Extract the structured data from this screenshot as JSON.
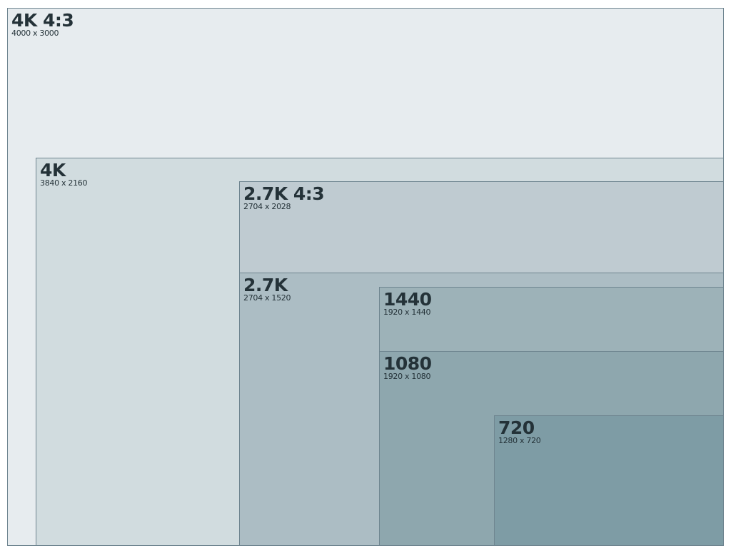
{
  "resolutions": [
    {
      "name": "4K 4:3",
      "dims": "4000 x 3000",
      "width": 4000,
      "height": 3000,
      "color": "#e7ecef"
    },
    {
      "name": "4K",
      "dims": "3840 x 2160",
      "width": 3840,
      "height": 2160,
      "color": "#d1dcdf"
    },
    {
      "name": "2.7K 4:3",
      "dims": "2704 x 2028",
      "width": 2704,
      "height": 2028,
      "color": "#bfcbd1"
    },
    {
      "name": "2.7K",
      "dims": "2704 x 1520",
      "width": 2704,
      "height": 1520,
      "color": "#acbdc4"
    },
    {
      "name": "1440",
      "dims": "1920 x 1440",
      "width": 1920,
      "height": 1440,
      "color": "#9db2b8"
    },
    {
      "name": "1080",
      "dims": "1920 x 1080",
      "width": 1920,
      "height": 1080,
      "color": "#8ea7ae"
    },
    {
      "name": "720",
      "dims": "1280 x 720",
      "width": 1280,
      "height": 720,
      "color": "#7e9ca5"
    }
  ]
}
